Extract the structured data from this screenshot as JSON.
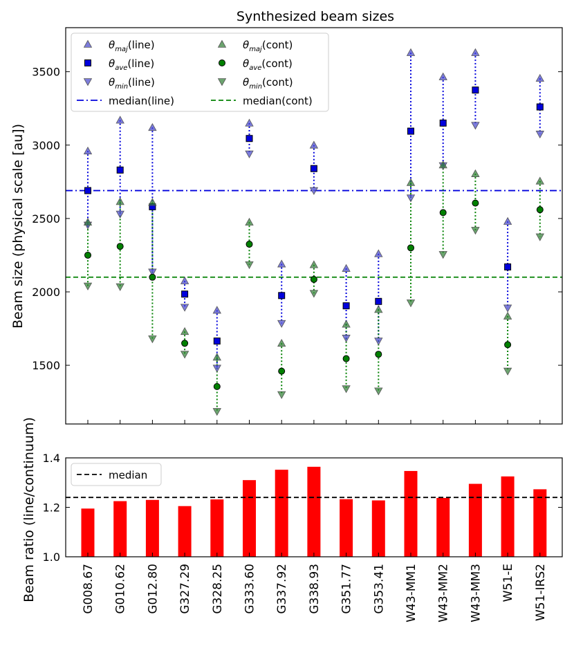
{
  "chart_data": [
    {
      "type": "scatter",
      "title": "Synthesized beam sizes",
      "ylabel": "Beam size (physical scale [au])",
      "xlabel": "",
      "ylim": [
        1100,
        3800
      ],
      "yticks": [
        1500,
        2000,
        2500,
        3000,
        3500
      ],
      "categories": [
        "G008.67",
        "G010.62",
        "G012.80",
        "G327.29",
        "G328.25",
        "G333.60",
        "G337.92",
        "G338.93",
        "G351.77",
        "G353.41",
        "W43-MM1",
        "W43-MM2",
        "W43-MM3",
        "W51-E",
        "W51-IRS2"
      ],
      "series": [
        {
          "name": "θmaj(line)",
          "theta": "θ",
          "sub": "maj",
          "suffix": "(line)",
          "marker": "triangle-up",
          "color": "#4444cc",
          "values": [
            2960,
            3170,
            3120,
            2075,
            1875,
            3150,
            2190,
            3000,
            2160,
            2260,
            3630,
            3465,
            3630,
            2480,
            3455
          ]
        },
        {
          "name": "θave(line)",
          "theta": "θ",
          "sub": "ave",
          "suffix": "(line)",
          "marker": "square",
          "color": "#0000dd",
          "values": [
            2690,
            2830,
            2580,
            1985,
            1665,
            3045,
            1975,
            2840,
            1905,
            1935,
            3095,
            3150,
            3375,
            2170,
            3260
          ]
        },
        {
          "name": "θmin(line)",
          "theta": "θ",
          "sub": "min",
          "suffix": "(line)",
          "marker": "triangle-down",
          "color": "#4444cc",
          "values": [
            2455,
            2530,
            2135,
            1895,
            1480,
            2940,
            1785,
            2690,
            1685,
            1665,
            2640,
            2860,
            3135,
            1890,
            3075
          ]
        },
        {
          "name": "θmaj(cont)",
          "theta": "θ",
          "sub": "maj",
          "suffix": "(cont)",
          "marker": "triangle-up",
          "color": "#2e7d32",
          "values": [
            2475,
            2615,
            2610,
            1730,
            1555,
            2475,
            1650,
            2185,
            1780,
            1880,
            2745,
            2865,
            2805,
            1835,
            2755
          ]
        },
        {
          "name": "θave(cont)",
          "theta": "θ",
          "sub": "ave",
          "suffix": "(cont)",
          "marker": "circle",
          "color": "#008000",
          "values": [
            2250,
            2310,
            2100,
            1650,
            1355,
            2325,
            1460,
            2085,
            1545,
            1575,
            2300,
            2540,
            2605,
            1640,
            2560
          ]
        },
        {
          "name": "θmin(cont)",
          "theta": "θ",
          "sub": "min",
          "suffix": "(cont)",
          "marker": "triangle-down",
          "color": "#2e7d32",
          "values": [
            2040,
            2035,
            1680,
            1575,
            1185,
            2185,
            1300,
            1990,
            1340,
            1325,
            1925,
            2255,
            2420,
            1460,
            2375
          ]
        }
      ],
      "reference_lines": [
        {
          "name": "median(line)",
          "value": 2690,
          "color": "#0000dd",
          "style": "dashdot"
        },
        {
          "name": "median(cont)",
          "value": 2100,
          "color": "#008000",
          "style": "dashed"
        }
      ],
      "legend": "top-left"
    },
    {
      "type": "bar",
      "title": "",
      "ylabel": "Beam ratio (line/continuum)",
      "xlabel": "",
      "ylim": [
        1.0,
        1.4
      ],
      "yticks": [
        "1.0",
        "1.2",
        "1.4"
      ],
      "categories": [
        "G008.67",
        "G010.62",
        "G012.80",
        "G327.29",
        "G328.25",
        "G333.60",
        "G337.92",
        "G338.93",
        "G351.77",
        "G353.41",
        "W43-MM1",
        "W43-MM2",
        "W43-MM3",
        "W51-E",
        "W51-IRS2"
      ],
      "values": [
        1.195,
        1.225,
        1.23,
        1.205,
        1.232,
        1.31,
        1.352,
        1.364,
        1.233,
        1.228,
        1.347,
        1.238,
        1.295,
        1.325,
        1.273
      ],
      "bar_color": "#ff0000",
      "reference_lines": [
        {
          "name": "median",
          "value": 1.24,
          "color": "#000000",
          "style": "dashed"
        }
      ],
      "legend": "top-left"
    }
  ]
}
